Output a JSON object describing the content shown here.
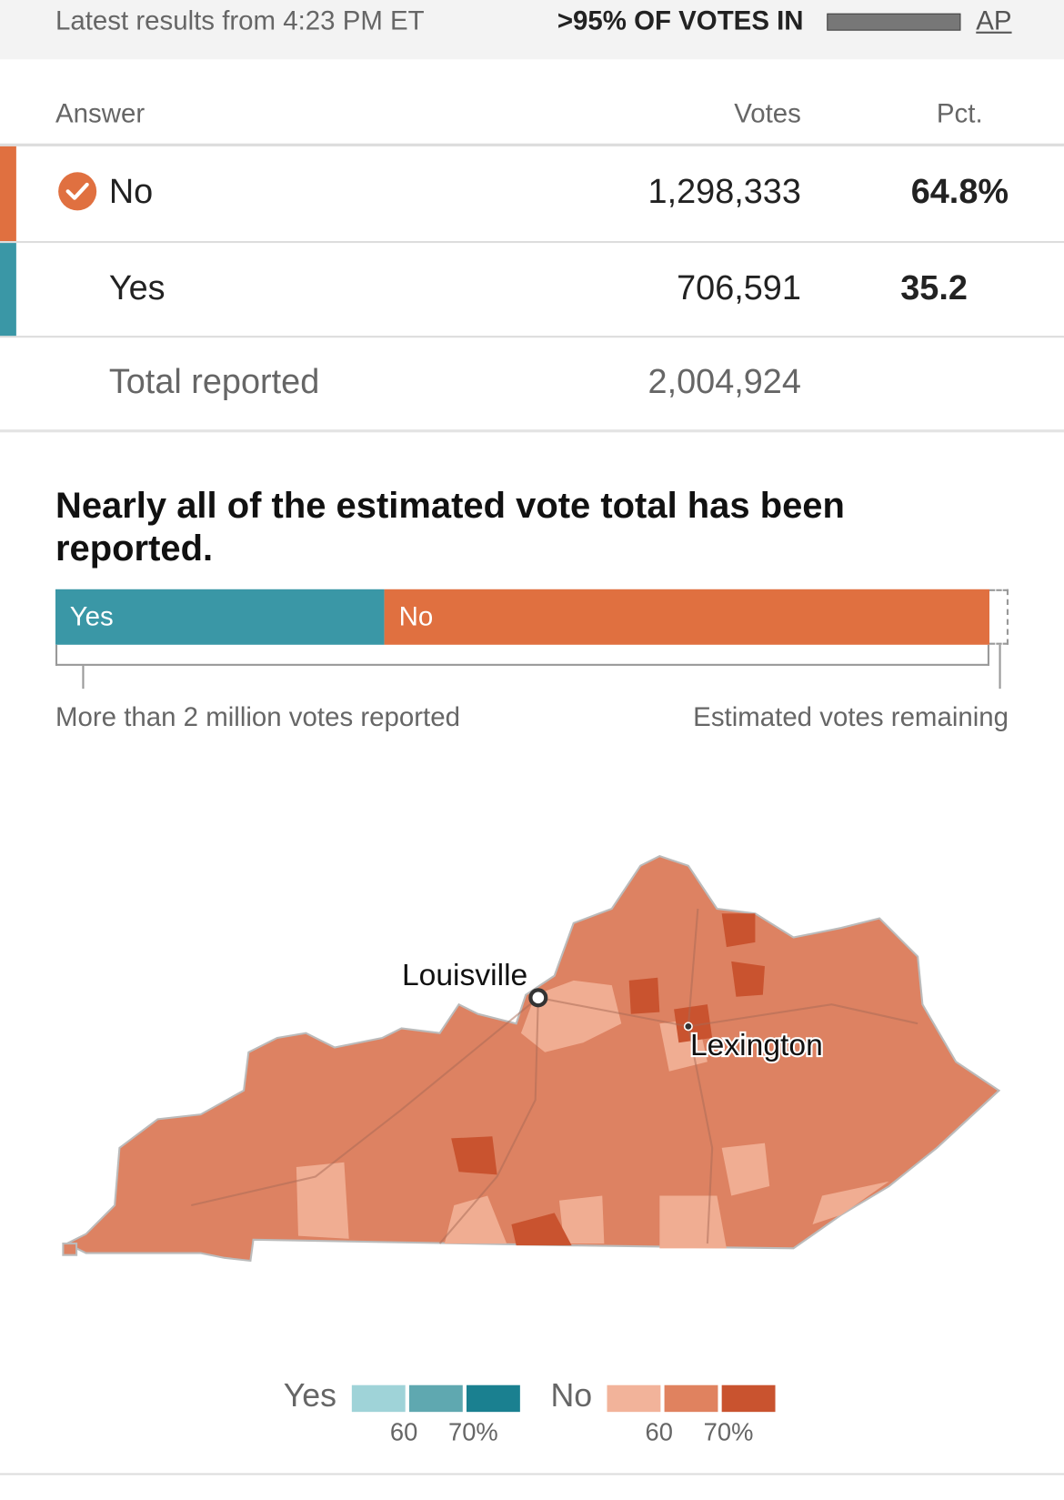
{
  "header": {
    "updated": "Latest results from 4:23 PM ET",
    "reporting": ">95% OF VOTES IN",
    "source": "AP"
  },
  "table": {
    "columns": [
      "Answer",
      "Votes",
      "Pct."
    ],
    "rows": [
      [
        "No",
        "1,298,333",
        "64.8%"
      ],
      [
        "Yes",
        "706,591",
        "35.2"
      ]
    ],
    "total": [
      "Total reported",
      "2,004,924"
    ]
  },
  "estimate": {
    "title": "Nearly all of the estimated vote total has been reported.",
    "segments": [
      "Yes",
      "No"
    ],
    "reported_label": "More than 2 million votes reported",
    "remaining_label": "Estimated votes remaining"
  },
  "map": {
    "cities": [
      "Louisville",
      "Lexington"
    ],
    "legend": {
      "groups": [
        "Yes",
        "No"
      ],
      "ticks": [
        "60",
        "70%"
      ]
    }
  }
}
